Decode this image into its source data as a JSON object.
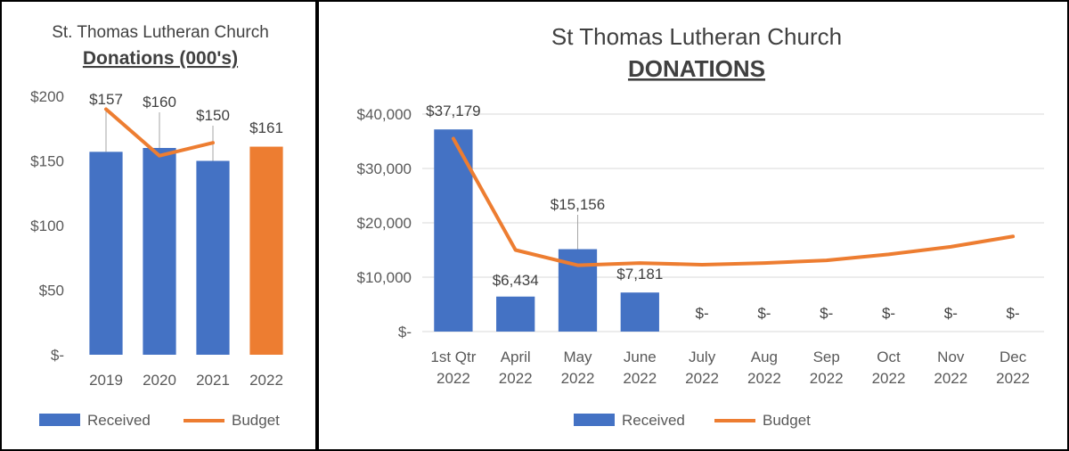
{
  "colors": {
    "received": "#4472C4",
    "highlight": "#ED7D31",
    "budget": "#ED7D31",
    "grid": "#D9D9D9",
    "leader": "#A6A6A6"
  },
  "chart_data": [
    {
      "type": "bar",
      "title": "St. Thomas Lutheran Church",
      "subtitle": "Donations (000's)",
      "categories": [
        "2019",
        "2020",
        "2021",
        "2022"
      ],
      "series": [
        {
          "name": "Received",
          "type": "bar",
          "values": [
            157,
            160,
            150,
            161
          ]
        },
        {
          "name": "Budget",
          "type": "line",
          "values": [
            190,
            154,
            164,
            null
          ]
        }
      ],
      "data_labels": [
        "$157",
        "$160",
        "$150",
        "$161"
      ],
      "highlight_index": 3,
      "yticks": [
        "$-",
        "$50",
        "$100",
        "$150",
        "$200"
      ],
      "ylim": [
        0,
        200
      ],
      "grid": false,
      "legend": "bottom"
    },
    {
      "type": "bar",
      "title": "St Thomas Lutheran Church",
      "subtitle": "DONATIONS",
      "categories": [
        [
          "1st Qtr",
          "2022"
        ],
        [
          "April",
          "2022"
        ],
        [
          "May",
          "2022"
        ],
        [
          "June",
          "2022"
        ],
        [
          "July",
          "2022"
        ],
        [
          "Aug",
          "2022"
        ],
        [
          "Sep",
          "2022"
        ],
        [
          "Oct",
          "2022"
        ],
        [
          "Nov",
          "2022"
        ],
        [
          "Dec",
          "2022"
        ]
      ],
      "series": [
        {
          "name": "Received",
          "type": "bar",
          "values": [
            37179,
            6434,
            15156,
            7181,
            0,
            0,
            0,
            0,
            0,
            0
          ]
        },
        {
          "name": "Budget",
          "type": "line",
          "values": [
            35500,
            15000,
            12200,
            12600,
            12300,
            12600,
            13100,
            14200,
            15600,
            17500
          ]
        }
      ],
      "data_labels": [
        "$37,179",
        "$6,434",
        "$15,156",
        "$7,181",
        "$-",
        "$-",
        "$-",
        "$-",
        "$-",
        "$-"
      ],
      "yticks": [
        "$-",
        "$10,000",
        "$20,000",
        "$30,000",
        "$40,000"
      ],
      "ylim": [
        0,
        40000
      ],
      "grid": true,
      "legend": "bottom"
    }
  ]
}
